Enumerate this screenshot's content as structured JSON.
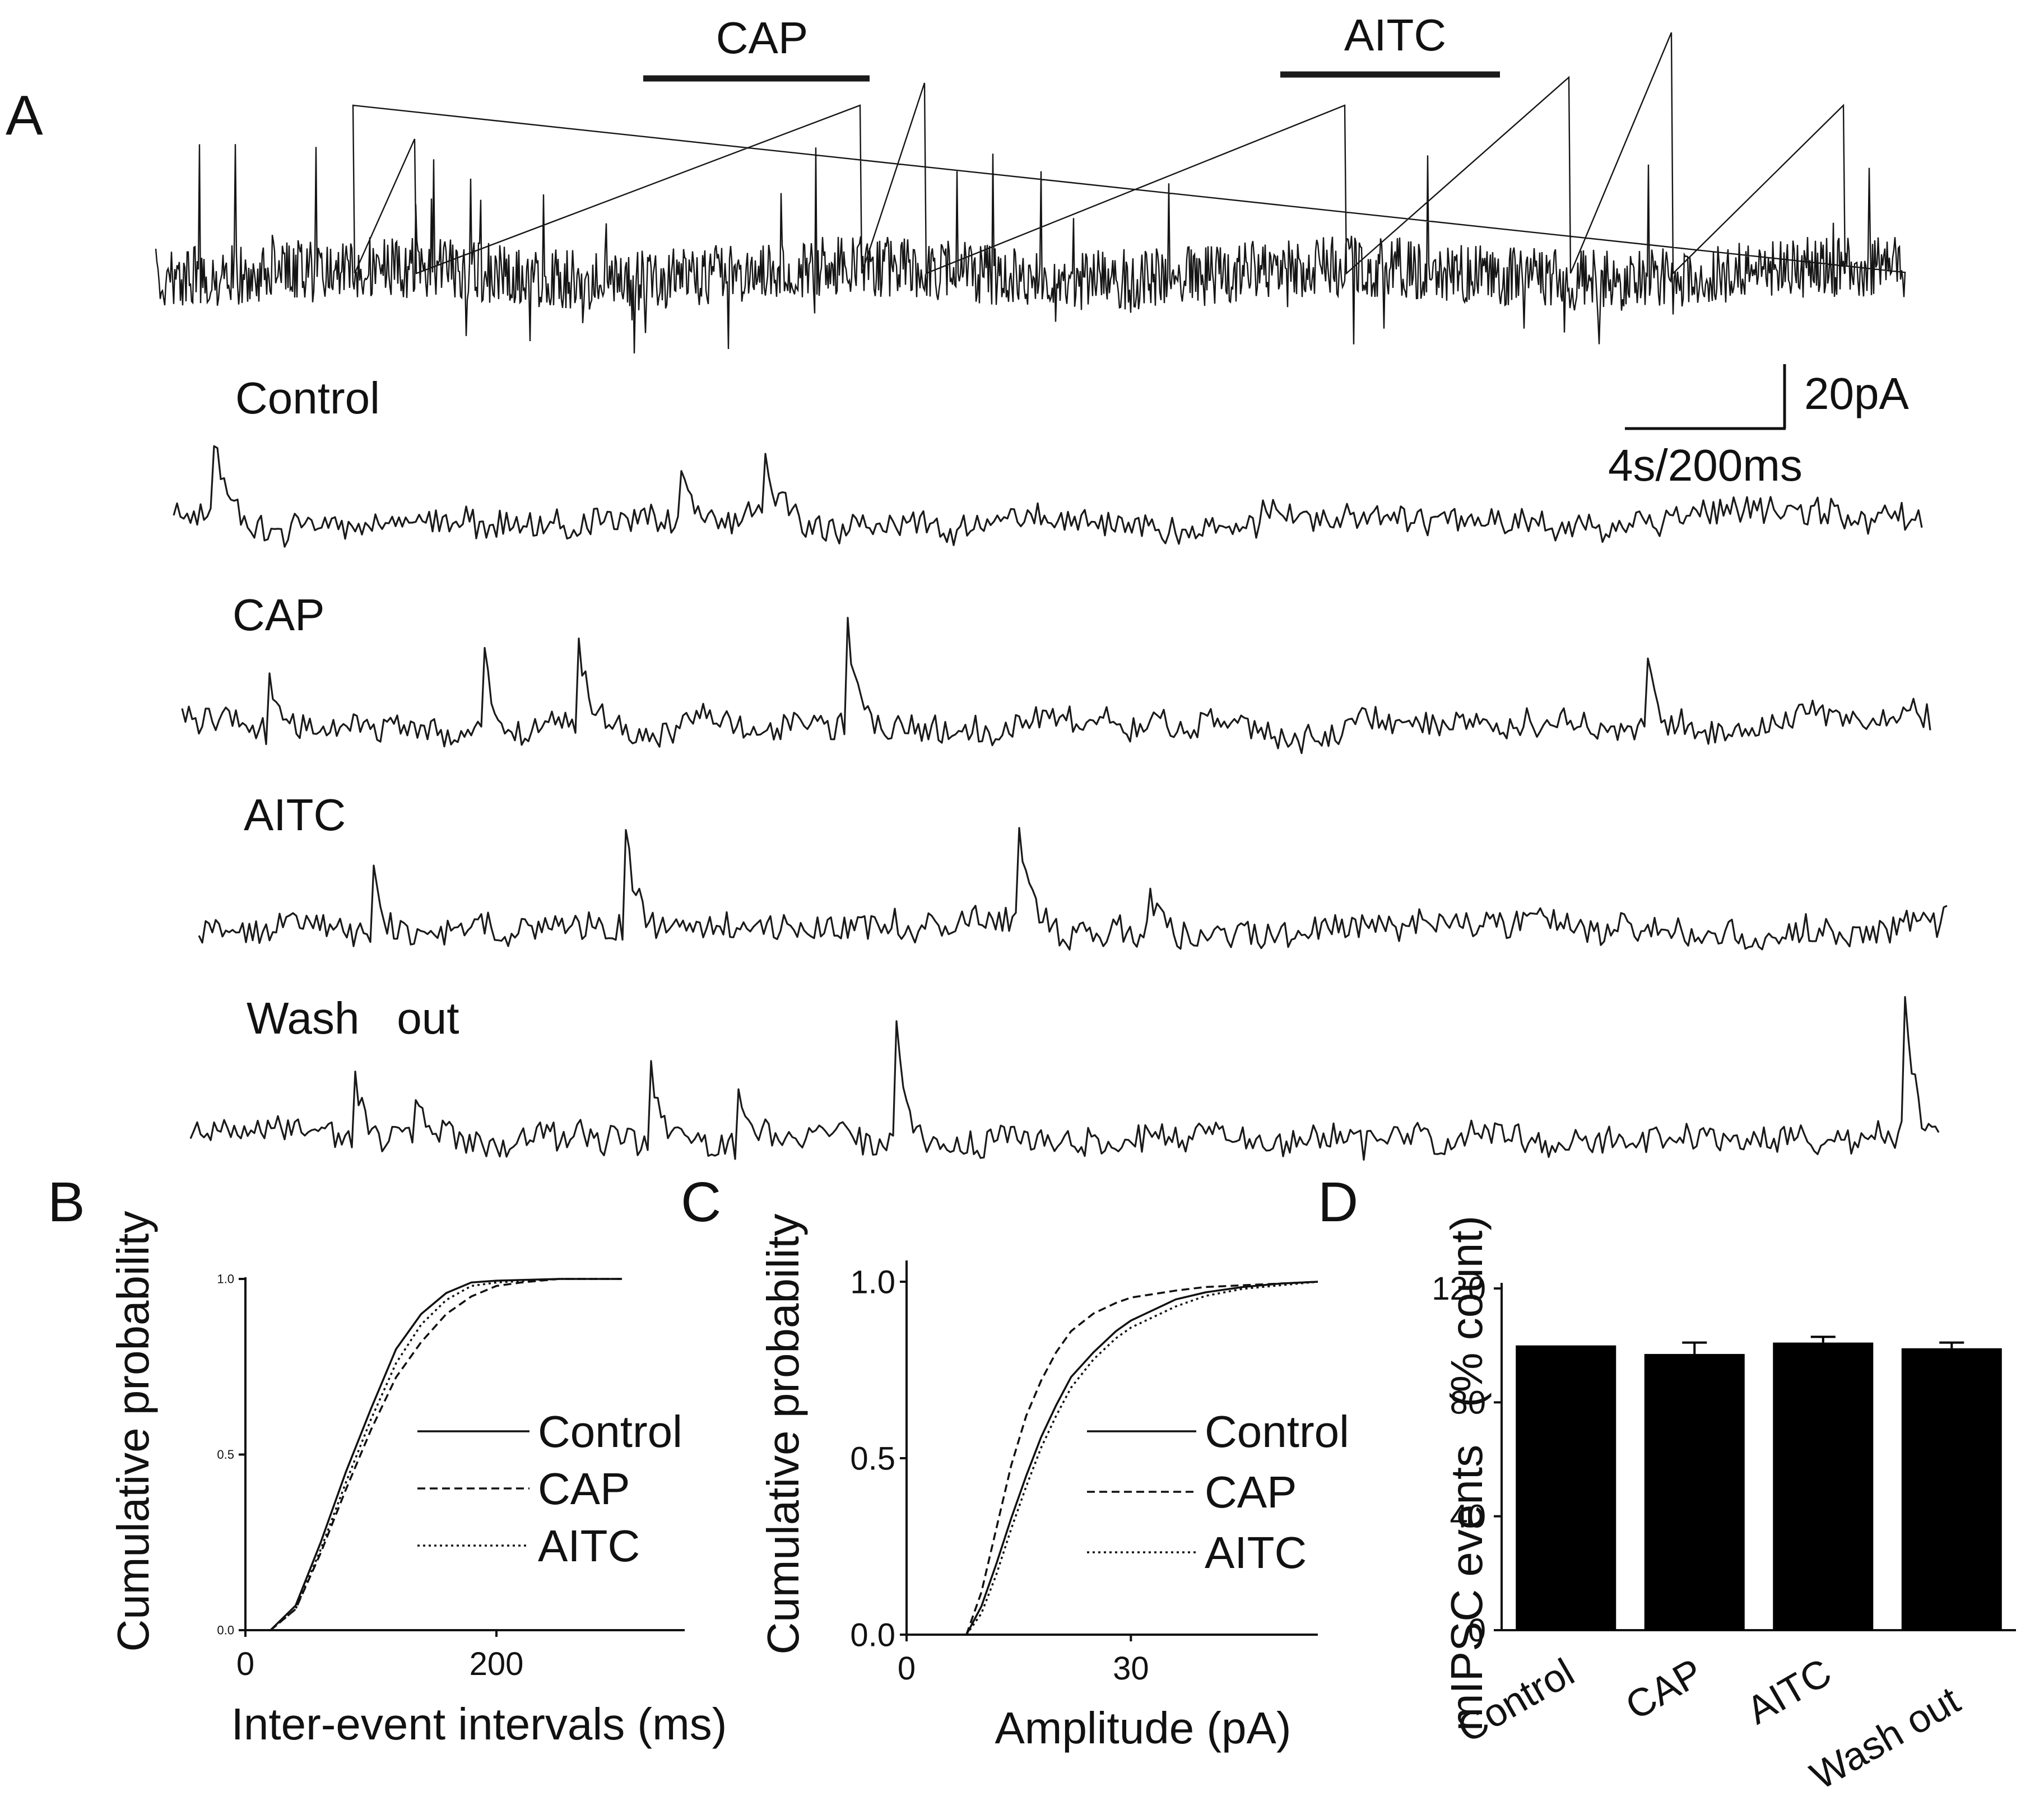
{
  "panel_labels": {
    "a": "A",
    "b": "B",
    "c": "C",
    "d": "D"
  },
  "panel_a": {
    "drug_bars": [
      "CAP",
      "AITC"
    ],
    "trace_labels": [
      "Control",
      "CAP",
      "AITC",
      "Wash   out"
    ],
    "scale_current": "20pA",
    "scale_time": "4s/200ms"
  },
  "chart_data": [
    {
      "panel": "B",
      "type": "line",
      "xlabel": "Inter-event intervals (ms)",
      "ylabel": "Cumulative probability",
      "xlim": [
        0,
        350
      ],
      "ylim": [
        0,
        1.0
      ],
      "xticks": [
        0,
        200
      ],
      "yticks": [
        "0.0",
        "0.5",
        "1.0"
      ],
      "legend_position": "center-right",
      "series": [
        {
          "name": "Control",
          "dash": "solid",
          "x": [
            20,
            40,
            60,
            80,
            100,
            120,
            140,
            160,
            180,
            200,
            250,
            300
          ],
          "y": [
            0.0,
            0.07,
            0.25,
            0.45,
            0.63,
            0.8,
            0.9,
            0.96,
            0.99,
            0.995,
            1.0,
            1.0
          ]
        },
        {
          "name": "CAP",
          "dash": "dashed",
          "x": [
            20,
            40,
            60,
            80,
            100,
            120,
            140,
            160,
            180,
            200,
            220,
            250,
            300
          ],
          "y": [
            0.0,
            0.06,
            0.22,
            0.4,
            0.57,
            0.72,
            0.82,
            0.9,
            0.95,
            0.98,
            0.99,
            1.0,
            1.0
          ]
        },
        {
          "name": "AITC",
          "dash": "dotted",
          "x": [
            20,
            40,
            60,
            80,
            100,
            120,
            140,
            160,
            180,
            200,
            250,
            300
          ],
          "y": [
            0.0,
            0.06,
            0.23,
            0.42,
            0.6,
            0.76,
            0.87,
            0.94,
            0.98,
            0.99,
            1.0,
            1.0
          ]
        }
      ]
    },
    {
      "panel": "C",
      "type": "line",
      "xlabel": "Amplitude (pA)",
      "ylabel": "Cumulative probability",
      "xlim": [
        0,
        55
      ],
      "ylim": [
        0,
        1.0
      ],
      "xticks": [
        0,
        30
      ],
      "yticks": [
        "0.0",
        "0.5",
        "1.0"
      ],
      "legend_position": "center-right",
      "series": [
        {
          "name": "Control",
          "dash": "solid",
          "x": [
            8,
            10,
            12,
            14,
            16,
            18,
            20,
            22,
            25,
            28,
            30,
            33,
            36,
            40,
            45,
            50,
            55
          ],
          "y": [
            0.0,
            0.08,
            0.2,
            0.33,
            0.45,
            0.56,
            0.65,
            0.73,
            0.8,
            0.86,
            0.89,
            0.92,
            0.95,
            0.97,
            0.985,
            0.995,
            1.0
          ]
        },
        {
          "name": "CAP",
          "dash": "dashed",
          "x": [
            8,
            10,
            12,
            14,
            16,
            18,
            20,
            22,
            25,
            28,
            30,
            33,
            36,
            40,
            45,
            50,
            55
          ],
          "y": [
            0.0,
            0.12,
            0.3,
            0.48,
            0.62,
            0.72,
            0.8,
            0.86,
            0.91,
            0.94,
            0.955,
            0.965,
            0.975,
            0.985,
            0.99,
            0.995,
            1.0
          ]
        },
        {
          "name": "AITC",
          "dash": "dotted",
          "x": [
            8,
            10,
            12,
            14,
            16,
            18,
            20,
            22,
            25,
            28,
            30,
            33,
            36,
            40,
            45,
            50,
            55
          ],
          "y": [
            0.0,
            0.06,
            0.17,
            0.3,
            0.42,
            0.53,
            0.62,
            0.7,
            0.78,
            0.84,
            0.87,
            0.9,
            0.93,
            0.96,
            0.98,
            0.99,
            1.0
          ]
        }
      ]
    },
    {
      "panel": "D",
      "type": "bar",
      "ylabel": "mIPSC events   (% count)",
      "categories": [
        "Control",
        "CAP",
        "AITC",
        "Wash out"
      ],
      "values": [
        100,
        97,
        101,
        99
      ],
      "errors": [
        0,
        4,
        2,
        2
      ],
      "ylim": [
        0,
        120
      ],
      "yticks": [
        0,
        40,
        80,
        120
      ]
    }
  ]
}
